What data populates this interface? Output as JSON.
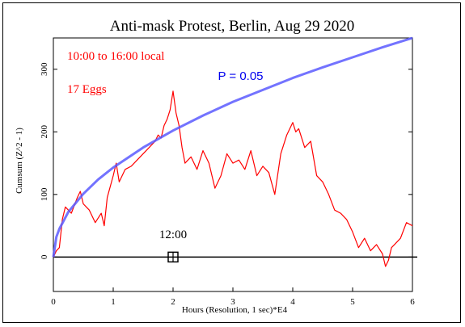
{
  "chart_data": {
    "type": "line",
    "title": "Anti-mask Protest, Berlin, Aug 29 2020",
    "xlabel": "Hours (Resolution, 1 sec)*E4",
    "ylabel": "Cumsum (Z^2 - 1)",
    "xlim": [
      0,
      6
    ],
    "ylim": [
      -55,
      350
    ],
    "x_ticks": [
      0,
      1,
      2,
      3,
      4,
      5,
      6
    ],
    "y_ticks": [
      0,
      100,
      200,
      300
    ],
    "grid": false,
    "annotations": [
      {
        "text": "10:00 to 16:00 local",
        "color": "#ff0000",
        "x": 0.23,
        "y": 315
      },
      {
        "text": "17 Eggs",
        "color": "#ff0000",
        "x": 0.23,
        "y": 262
      },
      {
        "text": "P = 0.05",
        "color": "#0000ee",
        "x": 2.75,
        "y": 283
      },
      {
        "text": "12:00",
        "color": "#000000",
        "x": 2.0,
        "y": 30
      }
    ],
    "marker": {
      "x": 2.0,
      "y": 0,
      "label": "12:00"
    },
    "series": [
      {
        "color": "#ff0000",
        "x": [
          0,
          0.05,
          0.1,
          0.15,
          0.2,
          0.3,
          0.4,
          0.45,
          0.5,
          0.6,
          0.7,
          0.8,
          0.85,
          0.9,
          1.0,
          1.05,
          1.1,
          1.2,
          1.3,
          1.4,
          1.5,
          1.6,
          1.7,
          1.75,
          1.8,
          1.85,
          1.9,
          1.95,
          2.0,
          2.05,
          2.1,
          2.15,
          2.2,
          2.3,
          2.4,
          2.5,
          2.6,
          2.7,
          2.8,
          2.9,
          3.0,
          3.1,
          3.2,
          3.3,
          3.4,
          3.5,
          3.6,
          3.7,
          3.8,
          3.9,
          4.0,
          4.05,
          4.1,
          4.2,
          4.3,
          4.4,
          4.5,
          4.6,
          4.7,
          4.8,
          4.9,
          5.0,
          5.1,
          5.2,
          5.3,
          5.4,
          5.5,
          5.55,
          5.6,
          5.65,
          5.7,
          5.8,
          5.9,
          6.0
        ],
        "values": [
          0,
          10,
          15,
          60,
          80,
          70,
          95,
          105,
          85,
          75,
          55,
          70,
          50,
          95,
          130,
          150,
          120,
          140,
          145,
          155,
          165,
          175,
          185,
          195,
          190,
          210,
          220,
          235,
          265,
          230,
          210,
          175,
          150,
          160,
          140,
          170,
          150,
          110,
          130,
          165,
          150,
          155,
          140,
          170,
          130,
          145,
          135,
          100,
          165,
          195,
          215,
          200,
          205,
          175,
          185,
          130,
          120,
          100,
          75,
          70,
          60,
          40,
          15,
          30,
          10,
          20,
          5,
          -15,
          -5,
          15,
          20,
          30,
          55,
          50
        ]
      },
      {
        "color": "#5a5aff",
        "name": "P = 0.05",
        "x": [
          0,
          0.05,
          0.1,
          0.25,
          0.5,
          0.75,
          1.0,
          1.5,
          2.0,
          2.5,
          3.0,
          3.5,
          4.0,
          4.5,
          5.0,
          5.5,
          6.0
        ],
        "values": [
          0,
          32,
          45,
          72,
          101,
          124,
          143,
          175,
          202,
          226,
          248,
          267,
          286,
          303,
          319,
          335,
          350
        ]
      }
    ]
  }
}
